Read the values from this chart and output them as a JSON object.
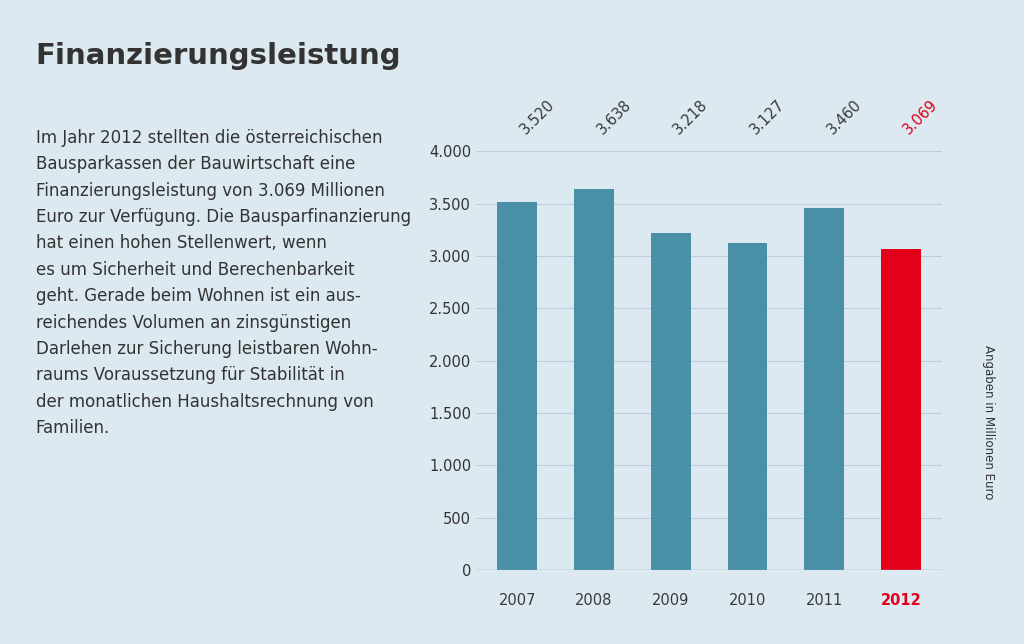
{
  "title": "Finanzierungsleistung",
  "body_lines": [
    "Im Jahr 2012 stellten die österreichischen",
    "Bausparkassen der Bauwirtschaft eine",
    "Finanzierungsleistung von 3.069 Millionen",
    "Euro zur Verfügung. Die Bausparfinanzierung",
    "hat einen hohen Stellenwert, wenn",
    "es um Sicherheit und Berechenbarkeit",
    "geht. Gerade beim Wohnen ist ein aus-",
    "reichendes Volumen an zinsgünstigen",
    "Darlehen zur Sicherung leistbaren Wohn-",
    "raums Voraussetzung für Stabilität in",
    "der monatlichen Haushaltsrechnung von",
    "Familien."
  ],
  "years": [
    "2007",
    "2008",
    "2009",
    "2010",
    "2011",
    "2012"
  ],
  "values": [
    3520,
    3638,
    3218,
    3127,
    3460,
    3069
  ],
  "bar_colors": [
    "#4a8fa8",
    "#4a8fa8",
    "#4a8fa8",
    "#4a8fa8",
    "#4a8fa8",
    "#e3001b"
  ],
  "bar_label_colors": [
    "#3a3a3a",
    "#3a3a3a",
    "#3a3a3a",
    "#3a3a3a",
    "#3a3a3a",
    "#e3001b"
  ],
  "xtick_colors": [
    "#3a3a3a",
    "#3a3a3a",
    "#3a3a3a",
    "#3a3a3a",
    "#3a3a3a",
    "#e3001b"
  ],
  "value_labels": [
    "3.520",
    "3.638",
    "3.218",
    "3.127",
    "3.460",
    "3.069"
  ],
  "ytick_labels": [
    "0",
    "500",
    "1.000",
    "1.500",
    "2.000",
    "2.500",
    "3.000",
    "3.500",
    "4.000"
  ],
  "ytick_values": [
    0,
    500,
    1000,
    1500,
    2000,
    2500,
    3000,
    3500,
    4000
  ],
  "ylim": [
    0,
    4400
  ],
  "ylabel_rotated": "Angaben in Millionen Euro",
  "background_color": "#dce9f0",
  "grid_color": "#b8cfd8",
  "axis_line_color": "#8aaab5",
  "text_color": "#333333",
  "title_fontsize": 21,
  "body_fontsize": 12,
  "tick_fontsize": 10.5,
  "label_fontsize": 10.5,
  "bar_width": 0.52
}
